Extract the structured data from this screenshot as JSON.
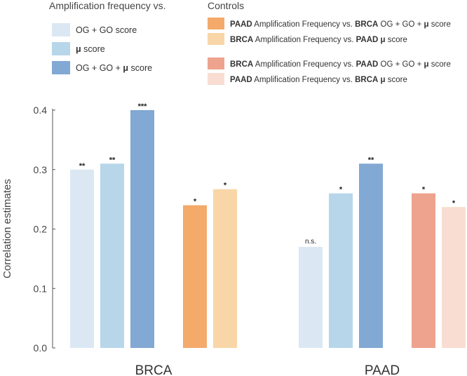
{
  "chart_data": {
    "type": "bar",
    "ylabel": "Correlation estimates",
    "ylim": [
      0,
      0.4
    ],
    "yticks": [
      "0.0",
      "0.1",
      "0.2",
      "0.3",
      "0.4"
    ],
    "categories": [
      "BRCA",
      "PAAD"
    ],
    "legend": {
      "amp_title": "Amplification frequency vs.",
      "controls_title": "Controls",
      "amp_items": [
        {
          "label": "OG + GO score",
          "color": "#dbe8f3"
        },
        {
          "label": "μ score",
          "color": "#b7d6ea"
        },
        {
          "label": "OG + GO + μ score",
          "color": "#82a8d4"
        }
      ],
      "control_items": [
        {
          "label": "PAAD Amplification Frequency vs. BRCA OG + GO + μ score",
          "color": "#f3aa6b"
        },
        {
          "label": "BRCA Amplification Frequency vs. PAAD μ score",
          "color": "#f8d6a8"
        },
        {
          "label": "BRCA Amplification Frequency vs. PAAD OG + GO + μ score",
          "color": "#eda38d"
        },
        {
          "label": "PAAD Amplification Frequency vs. BRCA μ score",
          "color": "#f9ddd2"
        }
      ]
    },
    "groups": [
      {
        "name": "BRCA",
        "bars": [
          {
            "value": 0.3,
            "color": "#dbe8f3",
            "sig": "**"
          },
          {
            "value": 0.31,
            "color": "#b7d6ea",
            "sig": "**"
          },
          {
            "value": 0.4,
            "color": "#82a8d4",
            "sig": "***"
          },
          {
            "value": 0.24,
            "color": "#f3aa6b",
            "sig": "*"
          },
          {
            "value": 0.267,
            "color": "#f8d6a8",
            "sig": "*"
          }
        ]
      },
      {
        "name": "PAAD",
        "bars": [
          {
            "value": 0.17,
            "color": "#dbe8f3",
            "sig": "n.s."
          },
          {
            "value": 0.26,
            "color": "#b7d6ea",
            "sig": "*"
          },
          {
            "value": 0.31,
            "color": "#82a8d4",
            "sig": "**"
          },
          {
            "value": 0.26,
            "color": "#eda38d",
            "sig": "*"
          },
          {
            "value": 0.237,
            "color": "#f9ddd2",
            "sig": "*"
          }
        ]
      }
    ]
  }
}
